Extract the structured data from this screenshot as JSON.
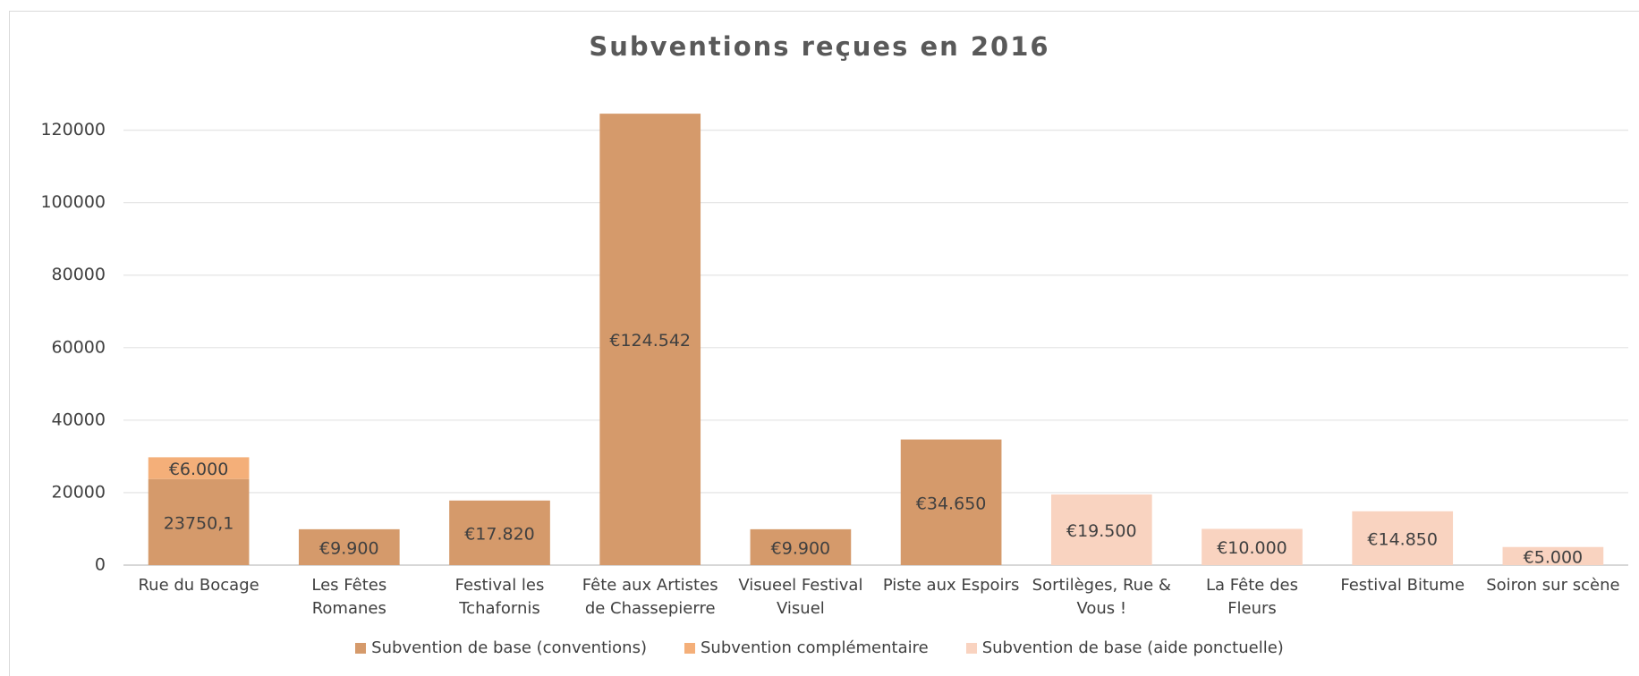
{
  "chart_data": {
    "type": "bar",
    "stacked": true,
    "title": "Subventions reçues en 2016",
    "categories": [
      "Rue du Bocage",
      "Les Fêtes Romanes",
      "Festival les Tchafornis",
      "Fête aux Artistes de Chassepierre",
      "Visueel Festival Visuel",
      "Piste aux Espoirs",
      "Sortilèges, Rue & Vous !",
      "La Fête des Fleurs",
      "Festival Bitume",
      "Soiron sur scène"
    ],
    "series": [
      {
        "name": "Subvention de base (conventions)",
        "color": "#d59a6b",
        "values": [
          23750.1,
          9900,
          17820,
          124542,
          9900,
          34650,
          null,
          null,
          null,
          null
        ],
        "value_labels": [
          "23750,1",
          "€9.900",
          "€17.820",
          "€124.542",
          "€9.900",
          "€34.650",
          null,
          null,
          null,
          null
        ]
      },
      {
        "name": "Subvention complémentaire",
        "color": "#f4af79",
        "values": [
          6000,
          null,
          null,
          null,
          null,
          null,
          null,
          null,
          null,
          null
        ],
        "value_labels": [
          "€6.000",
          null,
          null,
          null,
          null,
          null,
          null,
          null,
          null,
          null
        ]
      },
      {
        "name": "Subvention de base (aide ponctuelle)",
        "color": "#f9d3c0",
        "values": [
          null,
          null,
          null,
          null,
          null,
          null,
          19500,
          10000,
          14850,
          5000
        ],
        "value_labels": [
          null,
          null,
          null,
          null,
          null,
          null,
          "€19.500",
          "€10.000",
          "€14.850",
          "€5.000"
        ]
      }
    ],
    "ylim": [
      0,
      130000
    ],
    "yticks": [
      0,
      20000,
      40000,
      60000,
      80000,
      100000,
      120000
    ],
    "grid": true,
    "legend": "bottom"
  }
}
